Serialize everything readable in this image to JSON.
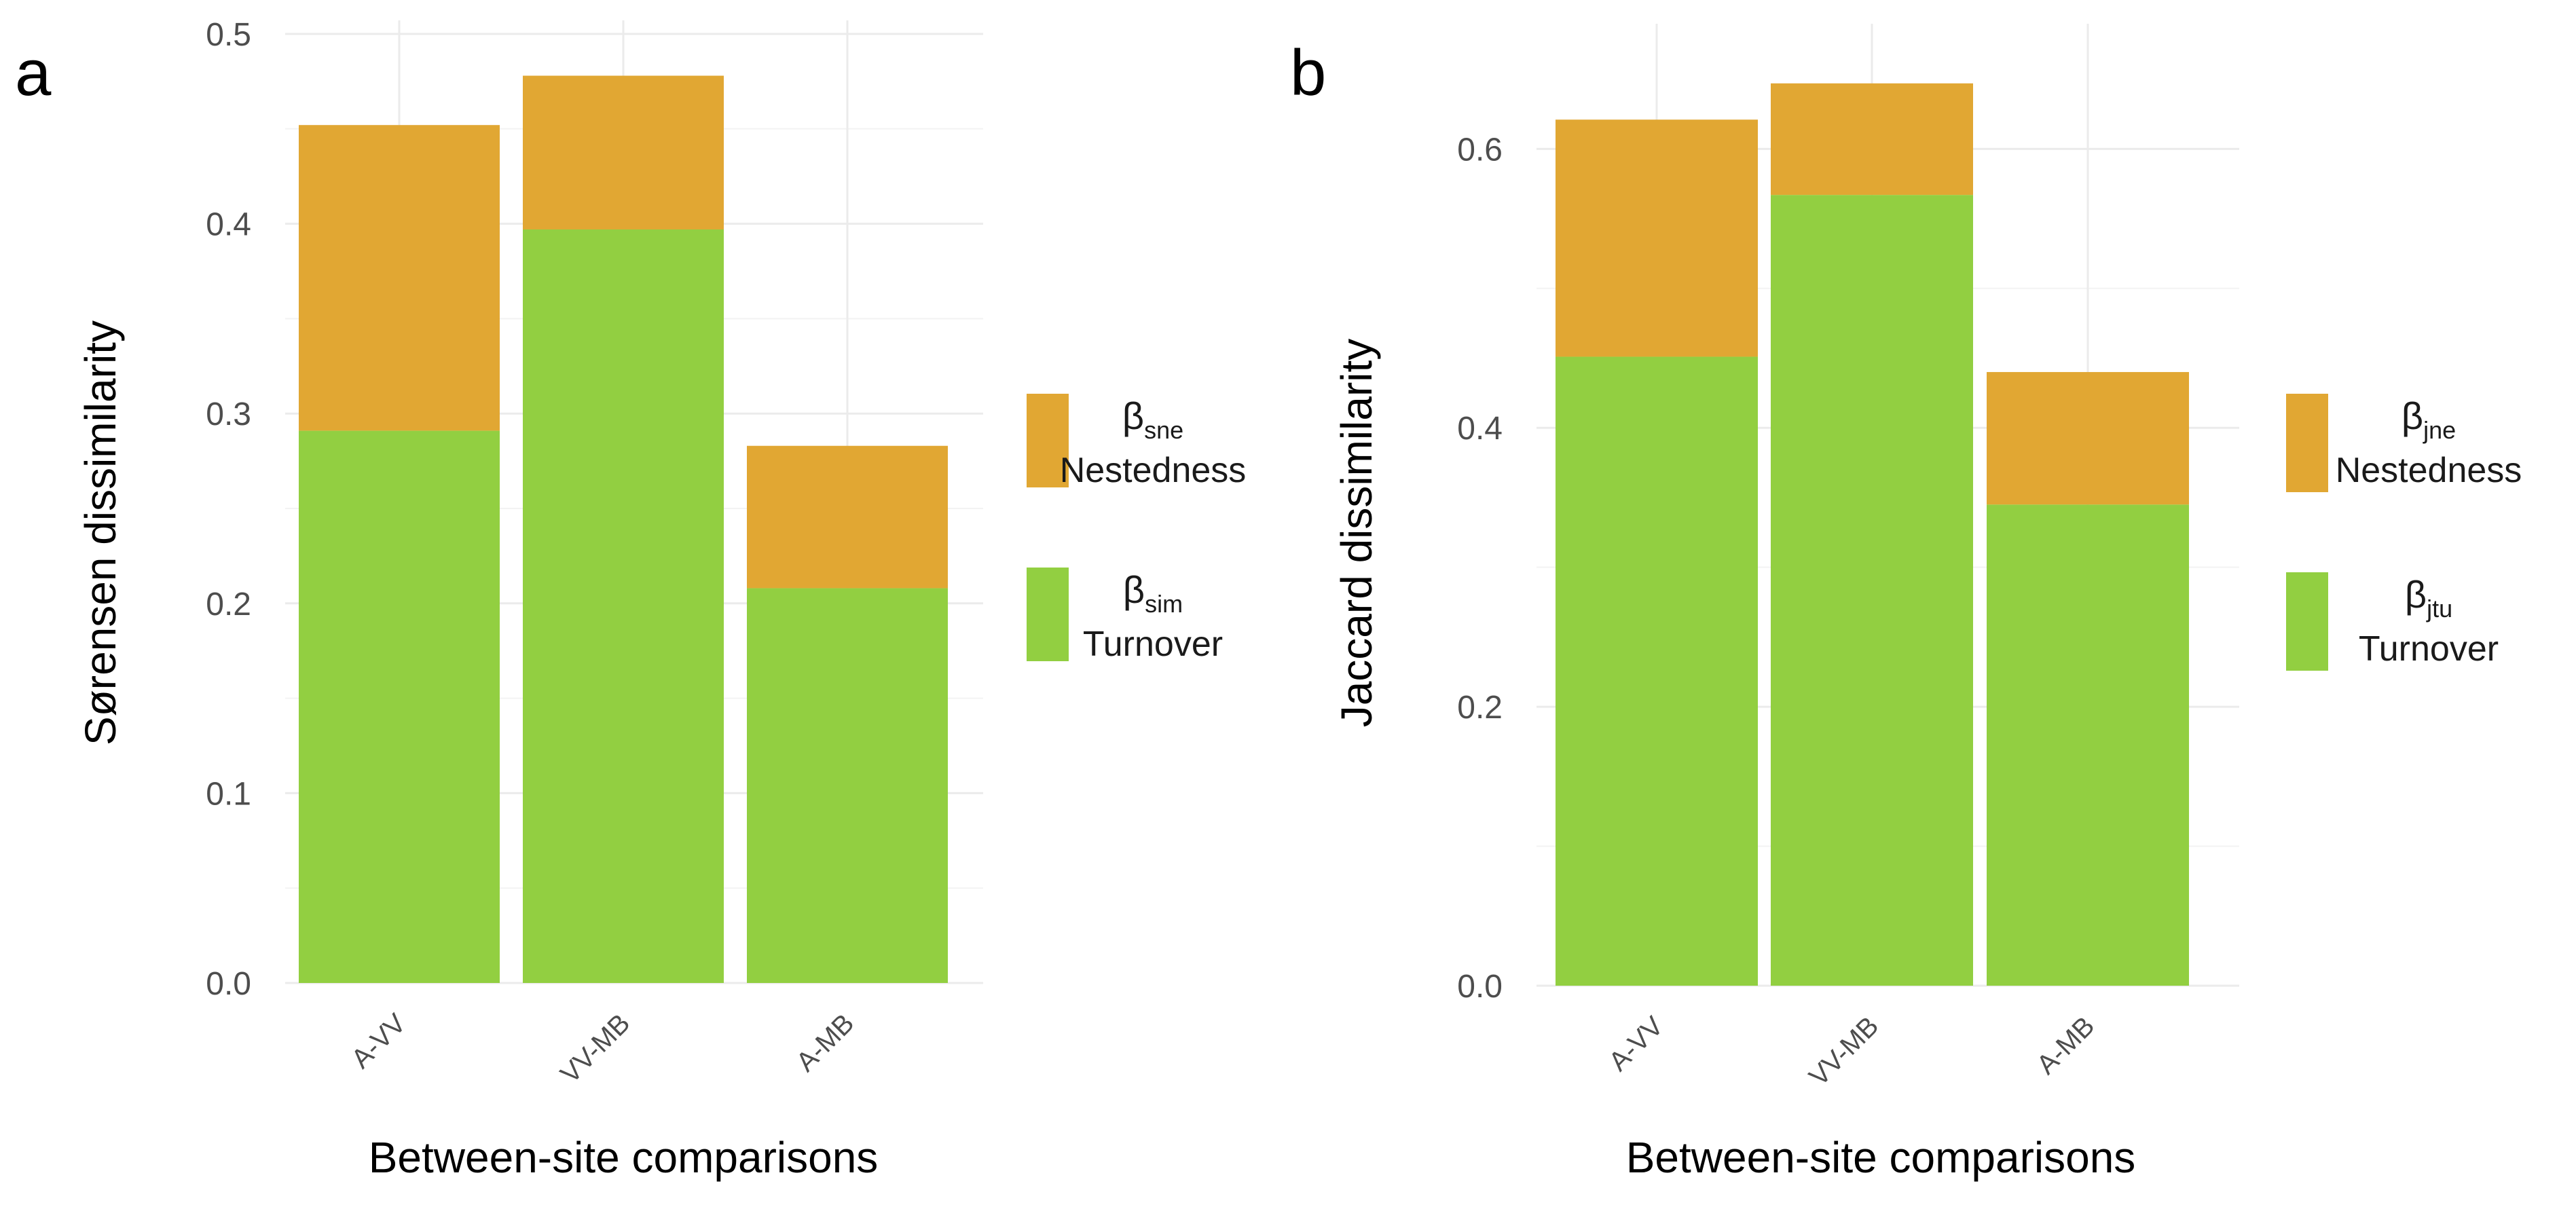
{
  "chart_data": [
    {
      "panel": "a",
      "type": "bar",
      "stacked": true,
      "categories": [
        "A-VV",
        "VV-MB",
        "A-MB"
      ],
      "series": [
        {
          "name": "Turnover",
          "symbol": "β",
          "subscript": "sim",
          "color": "#92cf41",
          "values": [
            0.291,
            0.397,
            0.208
          ]
        },
        {
          "name": "Nestedness",
          "symbol": "β",
          "subscript": "sne",
          "color": "#e1a733",
          "values": [
            0.161,
            0.081,
            0.075
          ]
        }
      ],
      "ylim": [
        0,
        0.5
      ],
      "yticks": [
        0.0,
        0.1,
        0.2,
        0.3,
        0.4,
        0.5
      ],
      "ytick_labels": [
        "0.0",
        "0.1",
        "0.2",
        "0.3",
        "0.4",
        "0.5"
      ],
      "xlabel": "Between-site comparisons",
      "ylabel": "Sørensen dissimilarity",
      "grid": true,
      "legend_position": "right"
    },
    {
      "panel": "b",
      "type": "bar",
      "stacked": true,
      "categories": [
        "A-VV",
        "VV-MB",
        "A-MB"
      ],
      "series": [
        {
          "name": "Turnover",
          "symbol": "β",
          "subscript": "jtu",
          "color": "#92cf41",
          "values": [
            0.451,
            0.567,
            0.345
          ]
        },
        {
          "name": "Nestedness",
          "symbol": "β",
          "subscript": "jne",
          "color": "#e1a733",
          "values": [
            0.17,
            0.08,
            0.095
          ]
        }
      ],
      "ylim": [
        0,
        0.68
      ],
      "yticks": [
        0.0,
        0.2,
        0.4,
        0.6
      ],
      "ytick_labels": [
        "0.0",
        "0.2",
        "0.4",
        "0.6"
      ],
      "xlabel": "Between-site comparisons",
      "ylabel": "Jaccard dissimilarity",
      "grid": true,
      "legend_position": "right"
    }
  ]
}
